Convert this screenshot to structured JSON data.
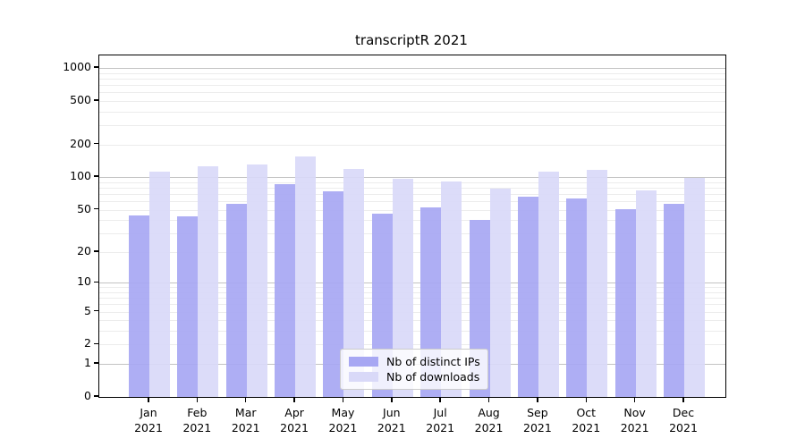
{
  "title": "transcriptR 2021",
  "chart_data": {
    "type": "bar",
    "title": "transcriptR 2021",
    "categories": [
      "Jan",
      "Feb",
      "Mar",
      "Apr",
      "May",
      "Jun",
      "Jul",
      "Aug",
      "Sep",
      "Oct",
      "Nov",
      "Dec"
    ],
    "year_label": "2021",
    "series": [
      {
        "name": "Nb of distinct IPs",
        "key": "distinct-ips",
        "color": "#a7a7f3",
        "values": [
          44,
          43,
          57,
          86,
          74,
          46,
          53,
          40,
          66,
          63,
          51,
          57
        ]
      },
      {
        "name": "Nb of downloads",
        "key": "downloads",
        "color": "#d9d9f8",
        "values": [
          113,
          125,
          130,
          154,
          120,
          96,
          91,
          79,
          113,
          116,
          75,
          98
        ]
      }
    ],
    "yscale": "log1p",
    "ylim": [
      0,
      1300
    ],
    "yticks": [
      0,
      1,
      2,
      5,
      10,
      20,
      50,
      100,
      200,
      500,
      1000
    ],
    "ytick_labels": [
      "0",
      "1",
      "2",
      "5",
      "10",
      "20",
      "50",
      "100",
      "200",
      "500",
      "1000"
    ],
    "xlabel": "",
    "ylabel": "",
    "grid": {
      "orientation": "horizontal",
      "major_color": "#c3c3c3",
      "minor_color": "#ececec"
    },
    "legend": {
      "position": "lower-center-inside",
      "entries": [
        "Nb of distinct IPs",
        "Nb of downloads"
      ]
    }
  },
  "colors": {
    "ip_bar": "#a7a7f3",
    "download_bar": "#d9d9f8",
    "frame": "#000000",
    "background": "#ffffff"
  }
}
